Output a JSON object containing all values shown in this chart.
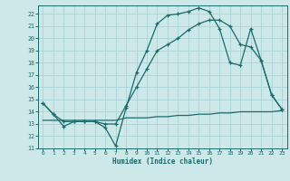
{
  "title": "",
  "xlabel": "Humidex (Indice chaleur)",
  "bg_color": "#cce8e8",
  "line_color": "#1a6b6b",
  "grid_color": "#aad4d4",
  "xlim": [
    -0.5,
    23.5
  ],
  "ylim": [
    11,
    22.7
  ],
  "yticks": [
    11,
    12,
    13,
    14,
    15,
    16,
    17,
    18,
    19,
    20,
    21,
    22
  ],
  "xticks": [
    0,
    1,
    2,
    3,
    4,
    5,
    6,
    7,
    8,
    9,
    10,
    11,
    12,
    13,
    14,
    15,
    16,
    17,
    18,
    19,
    20,
    21,
    22,
    23
  ],
  "line1_x": [
    0,
    1,
    2,
    3,
    4,
    5,
    6,
    7,
    8,
    9,
    10,
    11,
    12,
    13,
    14,
    15,
    16,
    17,
    18,
    19,
    20,
    21,
    22,
    23
  ],
  "line1_y": [
    14.7,
    13.8,
    12.8,
    13.2,
    13.2,
    13.2,
    12.7,
    11.2,
    14.3,
    17.2,
    19.0,
    21.2,
    21.9,
    22.0,
    22.2,
    22.5,
    22.2,
    20.8,
    18.0,
    17.8,
    20.8,
    18.2,
    15.4,
    14.2
  ],
  "line2_x": [
    0,
    1,
    2,
    3,
    4,
    5,
    6,
    7,
    8,
    9,
    10,
    11,
    12,
    13,
    14,
    15,
    16,
    17,
    18,
    19,
    20,
    21,
    22,
    23
  ],
  "line2_y": [
    13.3,
    13.3,
    13.3,
    13.3,
    13.3,
    13.3,
    13.3,
    13.3,
    13.5,
    13.5,
    13.5,
    13.6,
    13.6,
    13.7,
    13.7,
    13.8,
    13.8,
    13.9,
    13.9,
    14.0,
    14.0,
    14.0,
    14.0,
    14.1
  ],
  "line3_x": [
    0,
    1,
    2,
    3,
    4,
    5,
    6,
    7,
    8,
    9,
    10,
    11,
    12,
    13,
    14,
    15,
    16,
    17,
    18,
    19,
    20,
    21,
    22,
    23
  ],
  "line3_y": [
    14.7,
    13.8,
    13.2,
    13.2,
    13.2,
    13.2,
    13.0,
    13.0,
    14.5,
    16.0,
    17.5,
    19.0,
    19.5,
    20.0,
    20.7,
    21.2,
    21.5,
    21.5,
    21.0,
    19.5,
    19.3,
    18.2,
    15.4,
    14.2
  ]
}
